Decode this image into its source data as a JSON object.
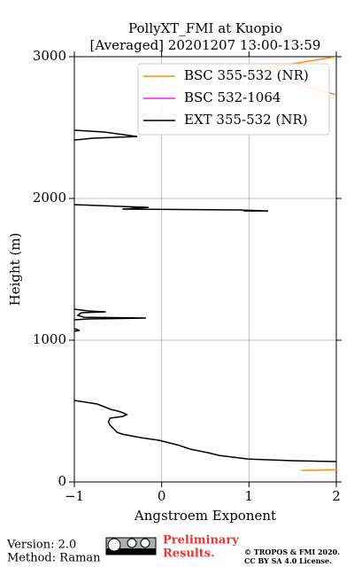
{
  "chart_data": {
    "type": "line",
    "title": "PollyXT_FMI at Kuopio",
    "subtitle": "[Averaged] 20201207 13:00-13:59",
    "x_label": "Angstroem Exponent",
    "y_label": "Height (m)",
    "xlim": [
      -1,
      2
    ],
    "ylim": [
      0,
      3000
    ],
    "xticks": [
      {
        "value": -1,
        "label": "−1"
      },
      0,
      1,
      2
    ],
    "yticks": [
      0,
      1000,
      2000,
      3000
    ],
    "grid": true,
    "legend": "upper right",
    "series": [
      {
        "name": "BSC 355-532 (NR)",
        "color": "#ff8c1a",
        "x": [
          0.99,
          2.0,
          null,
          1.6,
          2.0,
          null,
          1.6,
          2.0
        ],
        "y": [
          2900,
          3000,
          null,
          2800,
          2731,
          null,
          81,
          87
        ]
      },
      {
        "name": "BSC 532-1064",
        "color": "#ee22ee",
        "x": [],
        "y": []
      },
      {
        "name": "EXT 355-532 (NR)",
        "color": "#000000",
        "x": [
          -1,
          -0.74,
          -0.58,
          -0.5,
          -0.44,
          -0.4,
          -0.45,
          -0.59,
          -0.61,
          -0.59,
          -0.55,
          -0.51,
          -0.45,
          -0.23,
          -0.03,
          0.18,
          0.33,
          0.53,
          0.66,
          0.99,
          1.49,
          2.0,
          null,
          -1,
          -0.94,
          -1,
          null,
          -1,
          -0.84,
          -0.64,
          -0.92,
          -0.96,
          -0.89,
          -0.18,
          -0.84,
          -1,
          null,
          -1,
          -0.15,
          -0.45,
          0.89,
          1.22,
          0.94,
          null,
          -1,
          -0.66,
          -0.28,
          -0.79,
          -1
        ],
        "y": [
          575,
          550,
          512,
          500,
          487,
          475,
          462,
          450,
          425,
          400,
          375,
          350,
          337,
          312,
          294,
          262,
          231,
          206,
          187,
          162,
          150,
          144,
          null,
          1081,
          1069,
          1063,
          null,
          1219,
          1206,
          1200,
          1194,
          1175,
          1162,
          1156,
          1150,
          1144,
          null,
          1956,
          1937,
          1925,
          1919,
          1912,
          1912,
          null,
          2481,
          2469,
          2437,
          2425,
          2412
        ]
      }
    ]
  },
  "footer": {
    "version": "Version: 2.0",
    "method": "Method: Raman",
    "preliminary": [
      "Preliminary",
      "Results."
    ],
    "copyright": [
      "© TROPOS & FMI 2020.",
      "CC BY SA 4.0 License."
    ]
  }
}
